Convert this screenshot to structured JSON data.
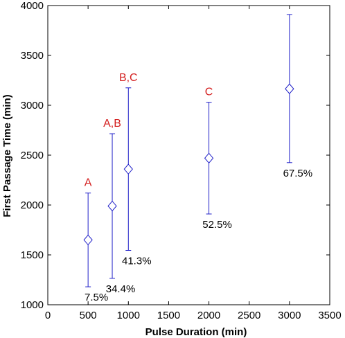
{
  "chart_data": {
    "type": "scatter",
    "xlabel": "Pulse Duration (min)",
    "ylabel": "First Passage Time (min)",
    "xlim": [
      0,
      3500
    ],
    "ylim": [
      1000,
      4000
    ],
    "xticks": [
      0,
      500,
      1000,
      1500,
      2000,
      2500,
      3000,
      3500
    ],
    "yticks": [
      1000,
      1500,
      2000,
      2500,
      3000,
      3500,
      4000
    ],
    "grid": false,
    "marker": "diamond",
    "series_color": "#1f1fc8",
    "group_label_color": "#d42020",
    "points": [
      {
        "x": 500,
        "y": 1650,
        "err_low": 1180,
        "err_high": 2120,
        "group": "A",
        "percent": "7.5%"
      },
      {
        "x": 800,
        "y": 1990,
        "err_low": 1265,
        "err_high": 2715,
        "group": "A,B",
        "percent": "34.4%"
      },
      {
        "x": 1000,
        "y": 2360,
        "err_low": 1545,
        "err_high": 3175,
        "group": "B,C",
        "percent": "41.3%"
      },
      {
        "x": 2000,
        "y": 2470,
        "err_low": 1910,
        "err_high": 3030,
        "group": "C",
        "percent": "52.5%"
      },
      {
        "x": 3000,
        "y": 3165,
        "err_low": 2425,
        "err_high": 3910,
        "group": "",
        "percent": "67.5%"
      }
    ]
  }
}
